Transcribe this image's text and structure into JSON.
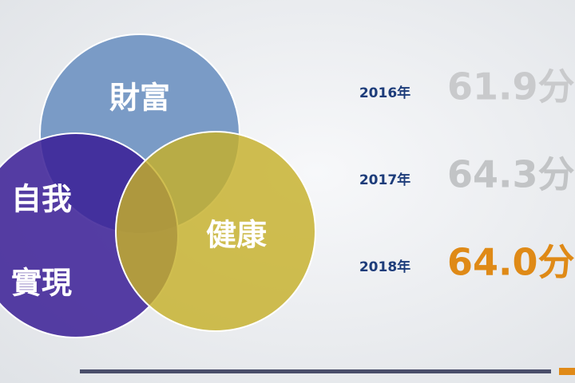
{
  "venn": {
    "circles": [
      {
        "label_lines": [
          "財富"
        ]
      },
      {
        "label_lines": [
          "自我",
          "實現"
        ]
      },
      {
        "label_lines": [
          "健康"
        ]
      }
    ]
  },
  "scores": [
    {
      "year": "2016年",
      "score": "61.9分"
    },
    {
      "year": "2017年",
      "score": "64.3分"
    },
    {
      "year": "2018年",
      "score": "64.0分"
    }
  ]
}
